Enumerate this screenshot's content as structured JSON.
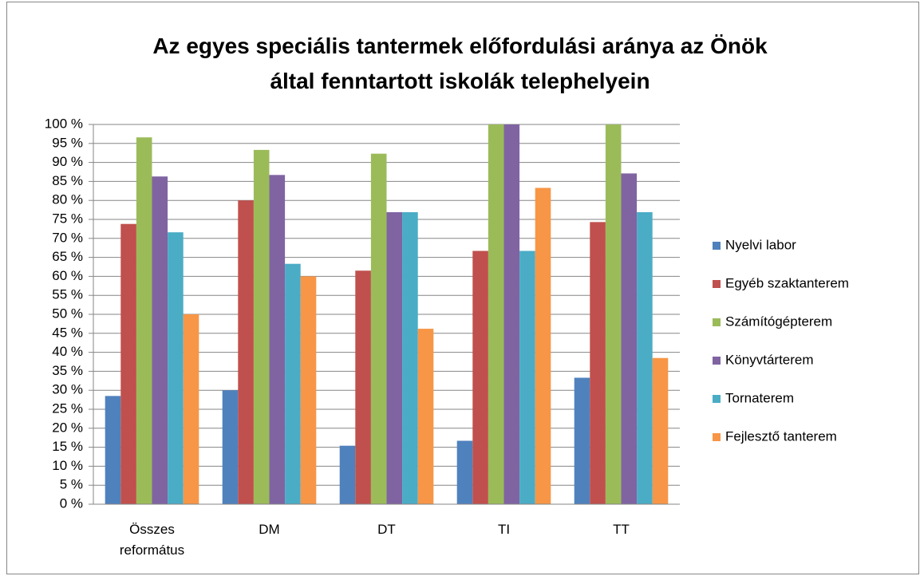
{
  "chart_data": {
    "type": "bar",
    "title": [
      "Az egyes speciális tantermek előfordulási aránya az Önök",
      "által fenntartott iskolák telephelyein"
    ],
    "categories": [
      "Összes református",
      "DM",
      "DT",
      "TI",
      "TT"
    ],
    "series": [
      {
        "name": "Nyelvi labor",
        "color": "#4f81bd",
        "values": [
          28.5,
          30,
          15.4,
          16.7,
          33.3
        ]
      },
      {
        "name": "Egyéb szaktanterem",
        "color": "#c0504d",
        "values": [
          73.8,
          80,
          61.5,
          66.7,
          74.3
        ]
      },
      {
        "name": "Számítógépterem",
        "color": "#9bbb59",
        "values": [
          96.6,
          93.3,
          92.3,
          100,
          100
        ]
      },
      {
        "name": "Könyvtárterem",
        "color": "#8064a2",
        "values": [
          86.3,
          86.7,
          76.9,
          100,
          87.1
        ]
      },
      {
        "name": "Tornaterem",
        "color": "#4bacc6",
        "values": [
          71.6,
          63.3,
          76.9,
          66.7,
          76.9
        ]
      },
      {
        "name": "Fejlesztő tanterem",
        "color": "#f79646",
        "values": [
          50,
          60,
          46.2,
          83.3,
          38.5
        ]
      }
    ],
    "ylim": [
      0,
      100
    ],
    "yticks": [
      {
        "value": 0,
        "label": "0 %"
      },
      {
        "value": 5,
        "label": "5 %"
      },
      {
        "value": 10,
        "label": "10 %"
      },
      {
        "value": 15,
        "label": "15 %"
      },
      {
        "value": 20,
        "label": "20 %"
      },
      {
        "value": 25,
        "label": "25 %"
      },
      {
        "value": 30,
        "label": "30 %"
      },
      {
        "value": 35,
        "label": "35 %"
      },
      {
        "value": 40,
        "label": "40 %"
      },
      {
        "value": 45,
        "label": "45 %"
      },
      {
        "value": 50,
        "label": "50 %"
      },
      {
        "value": 55,
        "label": "55 %"
      },
      {
        "value": 60,
        "label": "60 %"
      },
      {
        "value": 65,
        "label": "65 %"
      },
      {
        "value": 70,
        "label": "70 %"
      },
      {
        "value": 75,
        "label": "75 %"
      },
      {
        "value": 80,
        "label": "80 %"
      },
      {
        "value": 85,
        "label": "85 %"
      },
      {
        "value": 90,
        "label": "90 %"
      },
      {
        "value": 95,
        "label": "95 %"
      },
      {
        "value": 100,
        "label": "100 %"
      }
    ],
    "grid": true,
    "legend": "right"
  }
}
